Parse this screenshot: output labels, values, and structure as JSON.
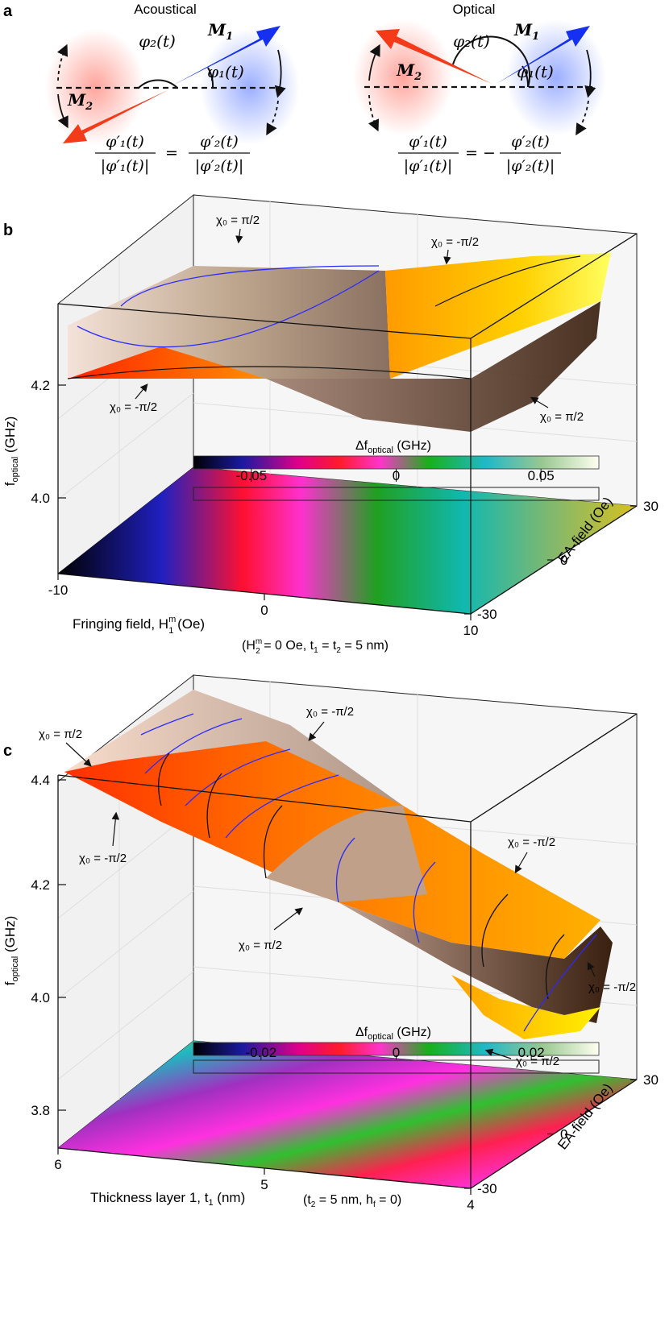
{
  "panel_a": {
    "label": "a",
    "acoustical": {
      "title": "Acoustical",
      "m1": "M",
      "m1_sub": "1",
      "m2": "M",
      "m2_sub": "2",
      "phi1": "φ₁(t)",
      "phi2": "φ₂(t)",
      "eq_lhs_num": "φ′₁(t)",
      "eq_lhs_den": "|φ′₁(t)|",
      "eq_sign": "=",
      "eq_rhs_num": "φ′₂(t)",
      "eq_rhs_den": "|φ′₂(t)|"
    },
    "optical": {
      "title": "Optical",
      "m1": "M",
      "m1_sub": "1",
      "m2": "M",
      "m2_sub": "2",
      "phi1": "φ₁(t)",
      "phi2": "φ₂(t)",
      "eq_lhs_num": "φ′₁(t)",
      "eq_lhs_den": "|φ′₁(t)|",
      "eq_sign": "= −",
      "eq_rhs_num": "φ′₂(t)",
      "eq_rhs_den": "|φ′₂(t)|"
    }
  },
  "chart_data": [
    {
      "panel": "b",
      "type": "surface3d",
      "zlabel": "f_optical (GHz)",
      "zlabel_main": "f",
      "zlabel_sub": "optical",
      "zlabel_unit": " (GHz)",
      "zticks": [
        "4.0",
        "4.2"
      ],
      "xlabel": "Fringing field, H",
      "xlabel_sup": "m",
      "xlabel_sub": "1",
      "xlabel_unit": " (Oe)",
      "xnote": "(H",
      "xnote_sup": "m",
      "xnote_sub": "2",
      "xnote_rest": " = 0 Oe, t",
      "xnote_sub1": "1",
      "xnote_mid": " = t",
      "xnote_sub2": "2",
      "xnote_end": " = 5 nm)",
      "xticks": [
        "-10",
        "0",
        "10"
      ],
      "ylabel": "EA-field (Oe)",
      "yticks": [
        "30",
        "0",
        "-30"
      ],
      "colorbar": {
        "label": "Δf",
        "label_sub": "optical",
        "label_unit": " (GHz)",
        "ticks": [
          "-0.05",
          "0",
          "0.05"
        ],
        "range": [
          -0.07,
          0.07
        ]
      },
      "annotations": [
        "χ₀ = π/2",
        "χ₀ = -π/2",
        "χ₀ = -π/2",
        "χ₀ = π/2"
      ]
    },
    {
      "panel": "c",
      "type": "surface3d",
      "zlabel": "f_optical (GHz)",
      "zlabel_main": "f",
      "zlabel_sub": "optical",
      "zlabel_unit": " (GHz)",
      "zticks": [
        "3.8",
        "4.0",
        "4.2",
        "4.4"
      ],
      "xlabel": "Thickness layer 1, t",
      "xlabel_sub": "1",
      "xlabel_unit": " (nm)",
      "xnote": "(t",
      "xnote_sub": "2",
      "xnote_mid": " = 5 nm, h",
      "xnote_sub2": "f",
      "xnote_end": " = 0)",
      "xticks": [
        "6",
        "5",
        "4"
      ],
      "ylabel": "EA-field (Oe)",
      "yticks": [
        "30",
        "0",
        "-30"
      ],
      "colorbar": {
        "label": "Δf",
        "label_sub": "optical",
        "label_unit": " (GHz)",
        "ticks": [
          "-0.02",
          "0",
          "0.02"
        ],
        "range": [
          -0.03,
          0.03
        ]
      },
      "annotations": [
        "χ₀ = π/2",
        "χ₀ = -π/2",
        "χ₀ = -π/2",
        "χ₀ = π/2",
        "χ₀ = -π/2",
        "χ₀ = -π/2",
        "χ₀ = π/2"
      ]
    }
  ]
}
